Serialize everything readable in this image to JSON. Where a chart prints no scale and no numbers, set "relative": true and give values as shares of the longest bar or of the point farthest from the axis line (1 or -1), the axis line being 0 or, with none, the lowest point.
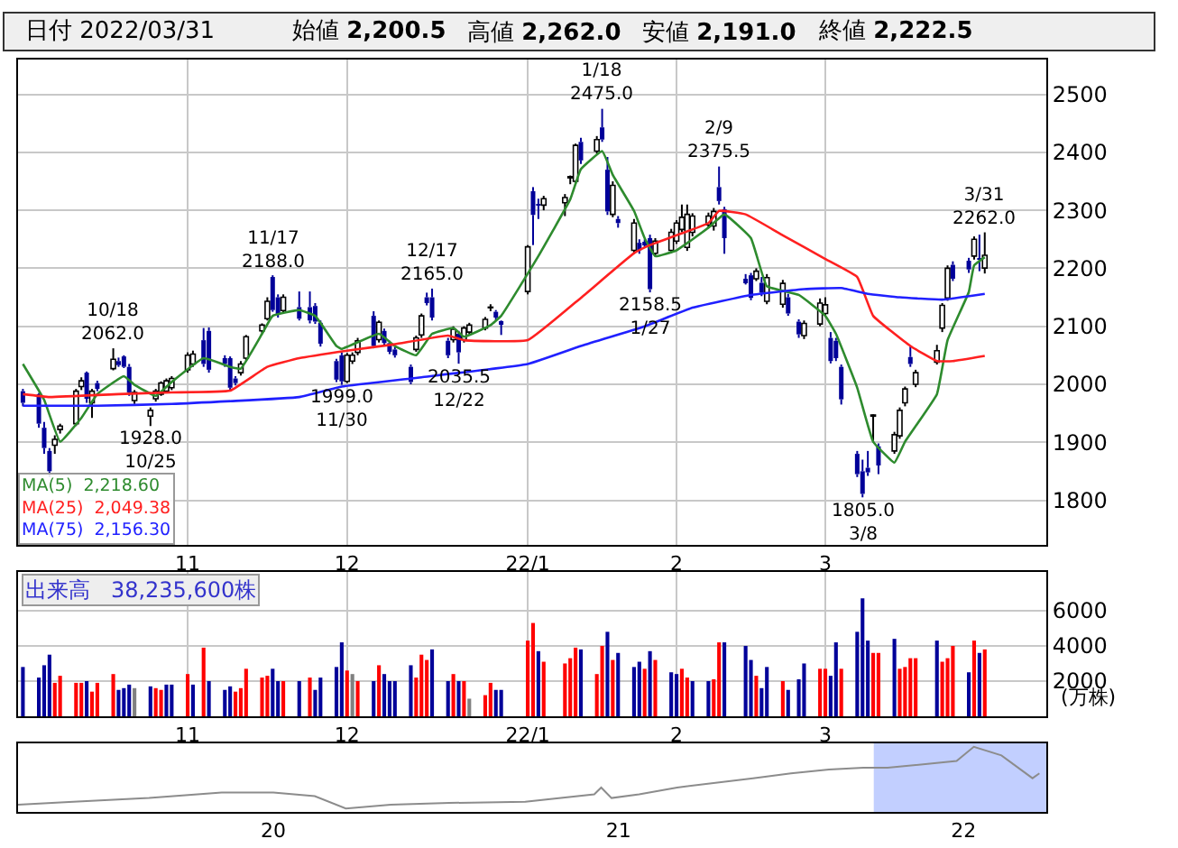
{
  "chart_data": [
    {
      "type": "candlestick",
      "title": "日付 2022/03/31",
      "annotations": [
        "始値 2,200.5",
        "高値 2,262.0",
        "安値 2,191.0",
        "終値 2,222.5",
        {
          "text": "10/18\n2062.0",
          "x": "2021-10-18",
          "y": 2062
        },
        {
          "text": "1928.0\n10/25",
          "x": "2021-10-25",
          "y": 1928
        },
        {
          "text": "11/17\n2188.0",
          "x": "2021-11-17",
          "y": 2188
        },
        {
          "text": "1999.0\n11/30",
          "x": "2021-11-30",
          "y": 1999
        },
        {
          "text": "12/17\n2165.0",
          "x": "2021-12-17",
          "y": 2165
        },
        {
          "text": "2035.5\n12/22",
          "x": "2021-12-22",
          "y": 2035.5
        },
        {
          "text": "1/18\n2475.0",
          "x": "2022-01-18",
          "y": 2475
        },
        {
          "text": "2158.5\n1/27",
          "x": "2022-01-27",
          "y": 2158.5
        },
        {
          "text": "2/9\n2375.5",
          "x": "2022-02-09",
          "y": 2375.5
        },
        {
          "text": "1805.0\n3/8",
          "x": "2022-03-08",
          "y": 1805
        },
        {
          "text": "3/31\n2262.0",
          "x": "2022-03-31",
          "y": 2262
        }
      ],
      "x": [
        "2021-10-01",
        "2021-10-04",
        "2021-10-05",
        "2021-10-06",
        "2021-10-07",
        "2021-10-08",
        "2021-10-11",
        "2021-10-12",
        "2021-10-13",
        "2021-10-14",
        "2021-10-15",
        "2021-10-18",
        "2021-10-19",
        "2021-10-20",
        "2021-10-21",
        "2021-10-22",
        "2021-10-25",
        "2021-10-26",
        "2021-10-27",
        "2021-10-28",
        "2021-10-29",
        "2021-11-01",
        "2021-11-02",
        "2021-11-04",
        "2021-11-05",
        "2021-11-08",
        "2021-11-09",
        "2021-11-10",
        "2021-11-11",
        "2021-11-12",
        "2021-11-15",
        "2021-11-16",
        "2021-11-17",
        "2021-11-18",
        "2021-11-19",
        "2021-11-22",
        "2021-11-24",
        "2021-11-25",
        "2021-11-26",
        "2021-11-29",
        "2021-11-30",
        "2021-12-01",
        "2021-12-02",
        "2021-12-03",
        "2021-12-06",
        "2021-12-07",
        "2021-12-08",
        "2021-12-09",
        "2021-12-10",
        "2021-12-13",
        "2021-12-14",
        "2021-12-15",
        "2021-12-16",
        "2021-12-17",
        "2021-12-20",
        "2021-12-21",
        "2021-12-22",
        "2021-12-23",
        "2021-12-24",
        "2021-12-27",
        "2021-12-28",
        "2021-12-29",
        "2021-12-30",
        "2022-01-04",
        "2022-01-05",
        "2022-01-06",
        "2022-01-07",
        "2022-01-11",
        "2022-01-12",
        "2022-01-13",
        "2022-01-14",
        "2022-01-17",
        "2022-01-18",
        "2022-01-19",
        "2022-01-20",
        "2022-01-21",
        "2022-01-24",
        "2022-01-25",
        "2022-01-26",
        "2022-01-27",
        "2022-01-28",
        "2022-01-31",
        "2022-02-01",
        "2022-02-02",
        "2022-02-03",
        "2022-02-04",
        "2022-02-07",
        "2022-02-08",
        "2022-02-09",
        "2022-02-10",
        "2022-02-14",
        "2022-02-15",
        "2022-02-16",
        "2022-02-17",
        "2022-02-18",
        "2022-02-21",
        "2022-02-22",
        "2022-02-24",
        "2022-02-25",
        "2022-02-28",
        "2022-03-01",
        "2022-03-02",
        "2022-03-03",
        "2022-03-04",
        "2022-03-07",
        "2022-03-08",
        "2022-03-09",
        "2022-03-10",
        "2022-03-11",
        "2022-03-14",
        "2022-03-15",
        "2022-03-16",
        "2022-03-17",
        "2022-03-18",
        "2022-03-22",
        "2022-03-23",
        "2022-03-24",
        "2022-03-25",
        "2022-03-28",
        "2022-03-29",
        "2022-03-30",
        "2022-03-31"
      ],
      "ohlc": [
        [
          1988,
          1992,
          1962,
          1968
        ],
        [
          1983,
          1985,
          1925,
          1932
        ],
        [
          1925,
          1935,
          1880,
          1890
        ],
        [
          1885,
          1890,
          1840,
          1850
        ],
        [
          1895,
          1912,
          1880,
          1905
        ],
        [
          1922,
          1932,
          1915,
          1928
        ],
        [
          1932,
          1992,
          1928,
          1988
        ],
        [
          1996,
          2012,
          1990,
          2006
        ],
        [
          2020,
          2022,
          1968,
          1975
        ],
        [
          1968,
          1992,
          1942,
          1988
        ],
        [
          2002,
          2006,
          1988,
          1992
        ],
        [
          2027,
          2062,
          2024,
          2043
        ],
        [
          2040,
          2046,
          2030,
          2033
        ],
        [
          2048,
          2050,
          2028,
          2030
        ],
        [
          2030,
          2035,
          1980,
          1986
        ],
        [
          1972,
          1990,
          1966,
          1986
        ],
        [
          1945,
          1960,
          1928,
          1955
        ],
        [
          1975,
          1992,
          1970,
          1988
        ],
        [
          1983,
          2005,
          1980,
          2002
        ],
        [
          1988,
          2010,
          1985,
          2006
        ],
        [
          1994,
          2014,
          1990,
          2010
        ],
        [
          2025,
          2055,
          2020,
          2050
        ],
        [
          2035,
          2058,
          2030,
          2052
        ],
        [
          2076,
          2097,
          2030,
          2035
        ],
        [
          2092,
          2098,
          2020,
          2025
        ],
        [
          2045,
          2050,
          2030,
          2035
        ],
        [
          2045,
          2048,
          1990,
          1994
        ],
        [
          2010,
          2014,
          1998,
          2002
        ],
        [
          2020,
          2040,
          2015,
          2035
        ],
        [
          2045,
          2085,
          2040,
          2082
        ],
        [
          2092,
          2105,
          2088,
          2102
        ],
        [
          2113,
          2150,
          2110,
          2143
        ],
        [
          2185,
          2188,
          2125,
          2128
        ],
        [
          2150,
          2155,
          2115,
          2120
        ],
        [
          2127,
          2155,
          2122,
          2150
        ],
        [
          2133,
          2160,
          2110,
          2113
        ],
        [
          2133,
          2160,
          2105,
          2110
        ],
        [
          2135,
          2140,
          2104,
          2108
        ],
        [
          2106,
          2110,
          2065,
          2070
        ],
        [
          2040,
          2044,
          2004,
          2008
        ],
        [
          2050,
          2055,
          1999,
          2005
        ],
        [
          2005,
          2054,
          2002,
          2050
        ],
        [
          2040,
          2055,
          2035,
          2050
        ],
        [
          2055,
          2080,
          2050,
          2075
        ],
        [
          2118,
          2126,
          2062,
          2066
        ],
        [
          2077,
          2110,
          2072,
          2107
        ],
        [
          2092,
          2096,
          2066,
          2071
        ],
        [
          2071,
          2075,
          2052,
          2056
        ],
        [
          2060,
          2064,
          2046,
          2050
        ],
        [
          2030,
          2034,
          2000,
          2004
        ],
        [
          2060,
          2084,
          2056,
          2080
        ],
        [
          2085,
          2122,
          2080,
          2118
        ],
        [
          2150,
          2158,
          2136,
          2140
        ],
        [
          2150,
          2165,
          2110,
          2115
        ],
        [
          2075,
          2080,
          2045,
          2050
        ],
        [
          2077,
          2100,
          2072,
          2095
        ],
        [
          2087,
          2092,
          2035.5,
          2055
        ],
        [
          2077,
          2100,
          2072,
          2097
        ],
        [
          2090,
          2106,
          2086,
          2102
        ],
        [
          2097,
          2116,
          2093,
          2112
        ],
        [
          2132,
          2138,
          2126,
          2133
        ],
        [
          2125,
          2128,
          2110,
          2115
        ],
        [
          2107,
          2110,
          2085,
          2105
        ],
        [
          2160,
          2240,
          2155,
          2237
        ],
        [
          2333,
          2340,
          2240,
          2292
        ],
        [
          2310,
          2320,
          2285,
          2308
        ],
        [
          2309,
          2325,
          2300,
          2320
        ],
        [
          2313,
          2328,
          2290,
          2322
        ],
        [
          2356,
          2360,
          2345,
          2358
        ],
        [
          2350,
          2415,
          2345,
          2412
        ],
        [
          2418,
          2425,
          2380,
          2386
        ],
        [
          2402,
          2428,
          2398,
          2422
        ],
        [
          2443,
          2475,
          2418,
          2422
        ],
        [
          2370,
          2392,
          2292,
          2298
        ],
        [
          2293,
          2350,
          2288,
          2343
        ],
        [
          2285,
          2290,
          2270,
          2278
        ],
        [
          2231,
          2285,
          2225,
          2278
        ],
        [
          2244,
          2250,
          2225,
          2231
        ],
        [
          2244,
          2250,
          2235,
          2240
        ],
        [
          2252,
          2258,
          2158.5,
          2164
        ],
        [
          2226,
          2252,
          2220,
          2247
        ],
        [
          2231,
          2268,
          2226,
          2262
        ],
        [
          2247,
          2283,
          2242,
          2278
        ],
        [
          2267,
          2310,
          2262,
          2288
        ],
        [
          2236,
          2310,
          2230,
          2293
        ],
        [
          2262,
          2295,
          2255,
          2290
        ],
        [
          2275,
          2296,
          2270,
          2290
        ],
        [
          2273,
          2304,
          2265,
          2298
        ],
        [
          2340,
          2375.5,
          2310,
          2316
        ],
        [
          2302,
          2306,
          2225,
          2252
        ],
        [
          2182,
          2190,
          2172,
          2177
        ],
        [
          2188,
          2192,
          2145,
          2149
        ],
        [
          2182,
          2200,
          2178,
          2195
        ],
        [
          2175,
          2185,
          2152,
          2158
        ],
        [
          2143,
          2190,
          2138,
          2184
        ],
        [
          2138,
          2180,
          2132,
          2174
        ],
        [
          2150,
          2156,
          2118,
          2122
        ],
        [
          2108,
          2112,
          2080,
          2086
        ],
        [
          2084,
          2110,
          2078,
          2105
        ],
        [
          2104,
          2148,
          2100,
          2140
        ],
        [
          2122,
          2150,
          2118,
          2137
        ],
        [
          2080,
          2090,
          2036,
          2040
        ],
        [
          2075,
          2080,
          2040,
          2045
        ],
        [
          2030,
          2034,
          1965,
          1974
        ],
        [
          1880,
          1885,
          1840,
          1845
        ],
        [
          1850,
          1870,
          1805,
          1811
        ],
        [
          1856,
          1885,
          1842,
          1848
        ],
        [
          1945,
          1948,
          1900,
          1947
        ],
        [
          1893,
          1898,
          1845,
          1860
        ],
        [
          1885,
          1918,
          1880,
          1913
        ],
        [
          1911,
          1960,
          1906,
          1955
        ],
        [
          1968,
          1996,
          1962,
          1992
        ],
        [
          2047,
          2065,
          2030,
          2035
        ],
        [
          2000,
          2025,
          1995,
          2020
        ],
        [
          2038,
          2068,
          2034,
          2058
        ],
        [
          2097,
          2140,
          2090,
          2136
        ],
        [
          2149,
          2205,
          2144,
          2200
        ],
        [
          2206,
          2212,
          2178,
          2182
        ],
        [
          2213,
          2218,
          2192,
          2198
        ],
        [
          2221,
          2255,
          2215,
          2250
        ],
        [
          2216,
          2258,
          2195,
          2215
        ],
        [
          2200.5,
          2262,
          2191,
          2222.5
        ]
      ],
      "series": [
        {
          "name": "MA(5)  2,218.60",
          "type": "line",
          "color": "#2e8b2e",
          "x": [
            "2021-10-01",
            "2021-10-05",
            "2021-10-08",
            "2021-10-12",
            "2021-10-15",
            "2021-10-20",
            "2021-10-22",
            "2021-10-26",
            "2021-10-29",
            "2021-11-04",
            "2021-11-09",
            "2021-11-11",
            "2021-11-15",
            "2021-11-17",
            "2021-11-22",
            "2021-11-25",
            "2021-11-29",
            "2021-11-30",
            "2021-12-07",
            "2021-12-10",
            "2021-12-14",
            "2021-12-17",
            "2021-12-21",
            "2021-12-23",
            "2021-12-28",
            "2021-12-30",
            "2022-01-06",
            "2022-01-12",
            "2022-01-14",
            "2022-01-18",
            "2022-01-20",
            "2022-01-24",
            "2022-01-26",
            "2022-01-28",
            "2022-02-01",
            "2022-02-07",
            "2022-02-10",
            "2022-02-15",
            "2022-02-18",
            "2022-02-24",
            "2022-03-01",
            "2022-03-03",
            "2022-03-07",
            "2022-03-10",
            "2022-03-14",
            "2022-03-16",
            "2022-03-22",
            "2022-03-24",
            "2022-03-28",
            "2022-03-29",
            "2022-03-31"
          ],
          "values": [
            2035,
            1973,
            1901,
            1942,
            1983,
            2014,
            1999,
            1980,
            2004,
            2045,
            2030,
            2027,
            2087,
            2118,
            2128,
            2118,
            2066,
            2061,
            2087,
            2066,
            2050,
            2087,
            2097,
            2082,
            2102,
            2118,
            2221,
            2319,
            2371,
            2402,
            2361,
            2299,
            2252,
            2221,
            2231,
            2270,
            2293,
            2252,
            2169,
            2154,
            2118,
            2087,
            1994,
            1901,
            1865,
            1901,
            1983,
            2076,
            2159,
            2205,
            2219
          ]
        },
        {
          "name": "MA(25)  2,049.38",
          "type": "line",
          "color": "#ff2020",
          "x": [
            "2021-10-01",
            "2021-10-06",
            "2021-10-19",
            "2021-10-29",
            "2021-11-09",
            "2021-11-16",
            "2021-11-22",
            "2021-12-01",
            "2021-12-10",
            "2021-12-20",
            "2021-12-23",
            "2022-01-04",
            "2022-01-14",
            "2022-01-24",
            "2022-01-27",
            "2022-02-07",
            "2022-02-09",
            "2022-02-14",
            "2022-02-21",
            "2022-03-01",
            "2022-03-07",
            "2022-03-10",
            "2022-03-17",
            "2022-03-22",
            "2022-03-25",
            "2022-03-31"
          ],
          "values": [
            1983,
            1978,
            1983,
            1986,
            1989,
            2030,
            2045,
            2058,
            2069,
            2084,
            2076,
            2076,
            2149,
            2226,
            2240,
            2278,
            2299,
            2293,
            2257,
            2216,
            2185,
            2118,
            2066,
            2040,
            2040,
            2049
          ]
        },
        {
          "name": "MA(75)  2,156.30",
          "type": "line",
          "color": "#2020ff",
          "x": [
            "2021-10-01",
            "2021-10-15",
            "2021-10-29",
            "2021-11-22",
            "2021-11-30",
            "2021-12-15",
            "2022-01-04",
            "2022-01-14",
            "2022-01-26",
            "2022-02-04",
            "2022-02-15",
            "2022-02-25",
            "2022-03-04",
            "2022-03-09",
            "2022-03-15",
            "2022-03-23",
            "2022-03-31"
          ],
          "values": [
            1963,
            1963,
            1966,
            1978,
            1996,
            2012,
            2035,
            2066,
            2100,
            2132,
            2154,
            2164,
            2166,
            2156,
            2150,
            2146,
            2156
          ]
        }
      ],
      "xlim": [
        "2021-09-30T02:00",
        "2022-04-11T14:00"
      ],
      "xticks": [
        {
          "value": "2021-11-01",
          "label": "11"
        },
        {
          "value": "2021-12-01",
          "label": "12"
        },
        {
          "value": "2022-01-04",
          "label": "22/1"
        },
        {
          "value": "2022-02-01",
          "label": "2"
        },
        {
          "value": "2022-03-01",
          "label": "3"
        }
      ],
      "ylim": [
        1723,
        2560
      ],
      "yticks": [
        1800,
        1900,
        2000,
        2100,
        2200,
        2300,
        2400,
        2500
      ],
      "grid": true,
      "legend": "bottom left"
    },
    {
      "type": "bar",
      "title": "出来高   38,235,600株",
      "ylabel": "(万株)",
      "x": [
        "2021-10-01",
        "2021-10-04",
        "2021-10-05",
        "2021-10-06",
        "2021-10-07",
        "2021-10-08",
        "2021-10-11",
        "2021-10-12",
        "2021-10-13",
        "2021-10-14",
        "2021-10-15",
        "2021-10-18",
        "2021-10-19",
        "2021-10-20",
        "2021-10-21",
        "2021-10-22",
        "2021-10-25",
        "2021-10-26",
        "2021-10-27",
        "2021-10-28",
        "2021-10-29",
        "2021-11-01",
        "2021-11-02",
        "2021-11-04",
        "2021-11-05",
        "2021-11-08",
        "2021-11-09",
        "2021-11-10",
        "2021-11-11",
        "2021-11-12",
        "2021-11-15",
        "2021-11-16",
        "2021-11-17",
        "2021-11-18",
        "2021-11-19",
        "2021-11-22",
        "2021-11-24",
        "2021-11-25",
        "2021-11-26",
        "2021-11-29",
        "2021-11-30",
        "2021-12-01",
        "2021-12-02",
        "2021-12-03",
        "2021-12-06",
        "2021-12-07",
        "2021-12-08",
        "2021-12-09",
        "2021-12-10",
        "2021-12-13",
        "2021-12-14",
        "2021-12-15",
        "2021-12-16",
        "2021-12-17",
        "2021-12-20",
        "2021-12-21",
        "2021-12-22",
        "2021-12-23",
        "2021-12-24",
        "2021-12-27",
        "2021-12-28",
        "2021-12-29",
        "2021-12-30",
        "2022-01-04",
        "2022-01-05",
        "2022-01-06",
        "2022-01-07",
        "2022-01-11",
        "2022-01-12",
        "2022-01-13",
        "2022-01-14",
        "2022-01-17",
        "2022-01-18",
        "2022-01-19",
        "2022-01-20",
        "2022-01-21",
        "2022-01-24",
        "2022-01-25",
        "2022-01-26",
        "2022-01-27",
        "2022-01-28",
        "2022-01-31",
        "2022-02-01",
        "2022-02-02",
        "2022-02-03",
        "2022-02-04",
        "2022-02-07",
        "2022-02-08",
        "2022-02-09",
        "2022-02-10",
        "2022-02-14",
        "2022-02-15",
        "2022-02-16",
        "2022-02-17",
        "2022-02-18",
        "2022-02-21",
        "2022-02-22",
        "2022-02-24",
        "2022-02-25",
        "2022-02-28",
        "2022-03-01",
        "2022-03-02",
        "2022-03-03",
        "2022-03-04",
        "2022-03-07",
        "2022-03-08",
        "2022-03-09",
        "2022-03-10",
        "2022-03-11",
        "2022-03-14",
        "2022-03-15",
        "2022-03-16",
        "2022-03-17",
        "2022-03-18",
        "2022-03-22",
        "2022-03-23",
        "2022-03-24",
        "2022-03-25",
        "2022-03-28",
        "2022-03-29",
        "2022-03-30",
        "2022-03-31"
      ],
      "values": [
        2800,
        2200,
        2900,
        3500,
        1900,
        2300,
        1900,
        1900,
        2000,
        1400,
        1900,
        2400,
        1500,
        1600,
        1800,
        1600,
        1700,
        1600,
        1500,
        1800,
        1800,
        2400,
        1800,
        3900,
        2000,
        1500,
        1700,
        1400,
        1600,
        2700,
        2200,
        2300,
        2700,
        2000,
        2000,
        2000,
        2200,
        1500,
        2200,
        2800,
        4200,
        2600,
        2400,
        2000,
        2000,
        2900,
        2400,
        2000,
        2000,
        2900,
        2200,
        3500,
        3200,
        3800,
        2000,
        2400,
        2000,
        2000,
        1000,
        1200,
        1900,
        1500,
        1500,
        4300,
        5300,
        3700,
        3100,
        3000,
        3300,
        3900,
        3800,
        2400,
        4000,
        4800,
        3200,
        3600,
        2800,
        3100,
        2700,
        3700,
        3200,
        2500,
        2400,
        2700,
        2200,
        2000,
        2000,
        2100,
        4200,
        4200,
        4000,
        3200,
        2300,
        1600,
        2800,
        2000,
        1500,
        2100,
        3000,
        2700,
        2700,
        2300,
        4200,
        2700,
        4800,
        6700,
        4300,
        3600,
        3600,
        4400,
        2700,
        2800,
        3300,
        3300,
        4300,
        3100,
        3300,
        4000,
        2500,
        4300,
        3600,
        3800
      ],
      "colors": [
        "#000099",
        "#000099",
        "#000099",
        "#000099",
        "#ff0000",
        "#ff0000",
        "#ff0000",
        "#ff0000",
        "#000099",
        "#ff0000",
        "#ff0000",
        "#ff0000",
        "#000099",
        "#000099",
        "#000099",
        "#808080",
        "#000099",
        "#ff0000",
        "#ff0000",
        "#000099",
        "#000099",
        "#ff0000",
        "#000099",
        "#ff0000",
        "#000099",
        "#000099",
        "#000099",
        "#ff0000",
        "#ff0000",
        "#ff0000",
        "#ff0000",
        "#ff0000",
        "#000099",
        "#000099",
        "#ff0000",
        "#000099",
        "#ff0000",
        "#000099",
        "#000099",
        "#000099",
        "#000099",
        "#ff0000",
        "#808080",
        "#ff0000",
        "#000099",
        "#ff0000",
        "#000099",
        "#000099",
        "#000099",
        "#000099",
        "#ff0000",
        "#ff0000",
        "#ff0000",
        "#000099",
        "#000099",
        "#ff0000",
        "#000099",
        "#ff0000",
        "#808080",
        "#ff0000",
        "#ff0000",
        "#000099",
        "#000099",
        "#ff0000",
        "#ff0000",
        "#000099",
        "#ff0000",
        "#ff0000",
        "#ff0000",
        "#ff0000",
        "#000099",
        "#ff0000",
        "#ff0000",
        "#000099",
        "#ff0000",
        "#000099",
        "#000099",
        "#000099",
        "#ff0000",
        "#000099",
        "#ff0000",
        "#000099",
        "#000099",
        "#ff0000",
        "#ff0000",
        "#000099",
        "#000099",
        "#ff0000",
        "#ff0000",
        "#000099",
        "#000099",
        "#000099",
        "#ff0000",
        "#000099",
        "#000099",
        "#ff0000",
        "#000099",
        "#000099",
        "#000099",
        "#ff0000",
        "#ff0000",
        "#000099",
        "#000099",
        "#ff0000",
        "#000099",
        "#000099",
        "#000099",
        "#ff0000",
        "#ff0000",
        "#000099",
        "#ff0000",
        "#ff0000",
        "#ff0000",
        "#ff0000",
        "#000099",
        "#ff0000",
        "#ff0000",
        "#ff0000",
        "#000099",
        "#ff0000",
        "#000099",
        "#ff0000"
      ],
      "xlim": [
        "2021-09-30T02:00",
        "2022-04-11T14:00"
      ],
      "xticks": [
        {
          "value": "2021-11-01",
          "label": "11"
        },
        {
          "value": "2021-12-01",
          "label": "12"
        },
        {
          "value": "2022-01-04",
          "label": "22/1"
        },
        {
          "value": "2022-02-01",
          "label": "2"
        },
        {
          "value": "2022-03-01",
          "label": "3"
        }
      ],
      "ylim": [
        0,
        8200
      ],
      "yticks": [
        2000,
        4000,
        6000
      ],
      "grid": true
    },
    {
      "type": "line",
      "relative": true,
      "color": "#8c8c8c",
      "x": [
        2019.26,
        2019.42,
        2019.64,
        2019.85,
        2020.0,
        2020.12,
        2020.21,
        2020.34,
        2020.51,
        2020.73,
        2020.93,
        2020.95,
        2020.98,
        2021.06,
        2021.17,
        2021.39,
        2021.5,
        2021.61,
        2021.71,
        2021.78,
        2021.98,
        2022.03,
        2022.11,
        2022.2,
        2022.22
      ],
      "values": [
        0.06,
        0.11,
        0.17,
        0.26,
        0.26,
        0.2,
        0,
        0.06,
        0.09,
        0.11,
        0.23,
        0.34,
        0.17,
        0.23,
        0.34,
        0.49,
        0.57,
        0.63,
        0.66,
        0.66,
        0.77,
        1,
        0.86,
        0.49,
        0.57
      ],
      "xlim": [
        2019.26,
        2022.24
      ],
      "xticks": [
        {
          "value": 2020,
          "label": "20"
        },
        {
          "value": 2021,
          "label": "21"
        },
        {
          "value": 2022,
          "label": "22"
        }
      ],
      "bands": [
        {
          "axis": "x",
          "from": 2021.74,
          "to": 2022.24,
          "color": "#b3c3ff"
        }
      ]
    }
  ]
}
